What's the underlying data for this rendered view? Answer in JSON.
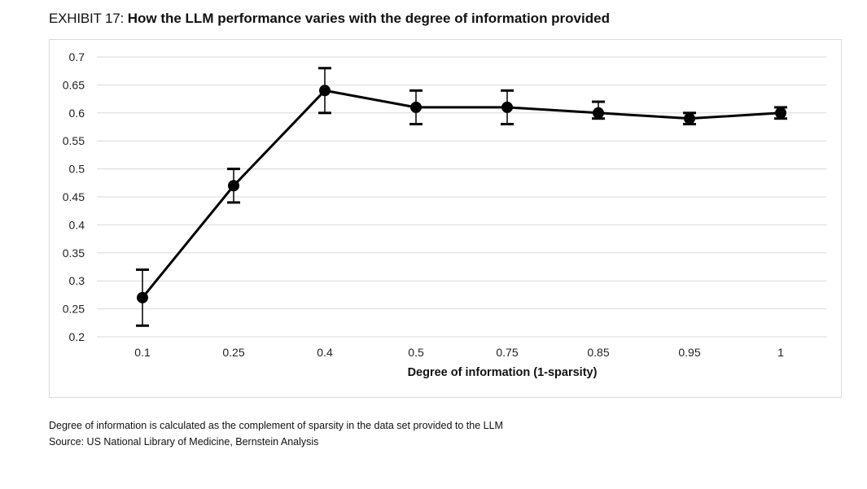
{
  "header": {
    "exhibit_prefix": "EXHIBIT 17:",
    "title": "How the LLM performance varies with the degree of information provided"
  },
  "chart_data": {
    "type": "line",
    "title": "How the LLM performance varies with the degree of information provided",
    "xlabel": "Degree of information (1-sparsity)",
    "ylabel": "",
    "categories": [
      "0.1",
      "0.25",
      "0.4",
      "0.5",
      "0.75",
      "0.85",
      "0.95",
      "1"
    ],
    "series": [
      {
        "values": [
          0.27,
          0.47,
          0.64,
          0.61,
          0.61,
          0.6,
          0.59,
          0.6
        ],
        "error_low": [
          0.22,
          0.44,
          0.6,
          0.58,
          0.58,
          0.59,
          0.58,
          0.59
        ],
        "error_high": [
          0.32,
          0.5,
          0.68,
          0.64,
          0.64,
          0.62,
          0.6,
          0.61
        ]
      }
    ],
    "ylim": [
      0.2,
      0.7
    ],
    "yticks": [
      "0.7",
      "0.65",
      "0.6",
      "0.55",
      "0.5",
      "0.45",
      "0.4",
      "0.35",
      "0.3",
      "0.25",
      "0.2"
    ],
    "grid": true,
    "legend": "none",
    "line_color": "#000000",
    "grid_color": "#d9d9d9"
  },
  "footnotes": {
    "note": "Degree of information is calculated as the complement of sparsity in the data set provided to the LLM",
    "source": "Source: US National Library of Medicine, Bernstein Analysis"
  }
}
